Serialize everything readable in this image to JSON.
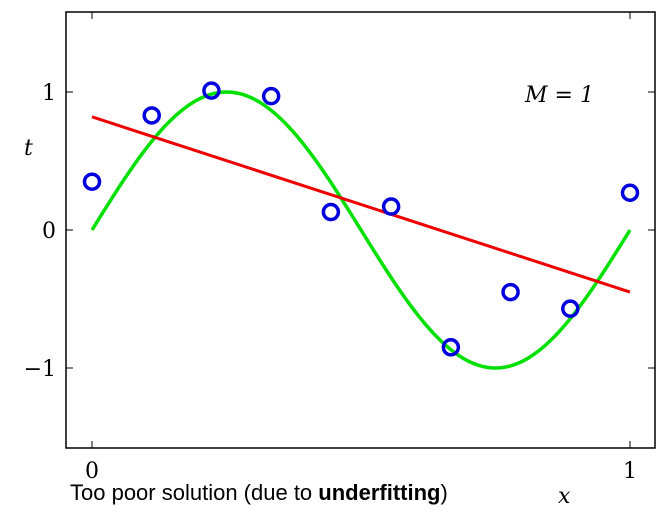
{
  "chart_data": {
    "type": "scatter",
    "annotation": "M = 1",
    "xlabel": "x",
    "ylabel": "t",
    "xlim": [
      0,
      1
    ],
    "ylim": [
      -1.6,
      1.6
    ],
    "x_ticks": [
      0,
      1
    ],
    "x_tick_labels": [
      "0",
      "1"
    ],
    "y_ticks": [
      -1,
      0,
      1
    ],
    "y_tick_labels": [
      "−1",
      "0",
      "1"
    ],
    "series": [
      {
        "name": "observations",
        "kind": "points",
        "color": "#0000dd",
        "x": [
          0.0,
          0.111,
          0.222,
          0.333,
          0.444,
          0.556,
          0.667,
          0.778,
          0.889,
          1.0
        ],
        "y": [
          0.35,
          0.83,
          1.01,
          0.97,
          0.13,
          0.17,
          -0.85,
          -0.45,
          -0.57,
          0.27
        ]
      },
      {
        "name": "sin(2πx)",
        "kind": "curve",
        "color": "#00e000",
        "function": "sin(2*pi*x)"
      },
      {
        "name": "M=1 fit",
        "kind": "line",
        "color": "#ee0000",
        "x": [
          0,
          1
        ],
        "y": [
          0.82,
          -0.45
        ]
      }
    ]
  },
  "caption": {
    "prefix": "Too poor solution (due to ",
    "emphasis": "underfitting",
    "suffix": ")"
  }
}
